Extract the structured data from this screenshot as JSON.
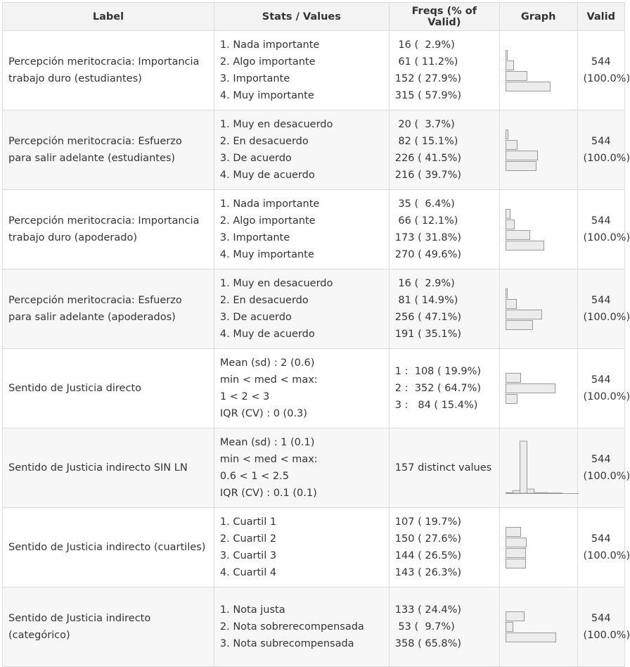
{
  "headers": {
    "label": "Label",
    "stats": "Stats / Values",
    "freqs": "Freqs (% of Valid)",
    "graph": "Graph",
    "valid": "Valid"
  },
  "rows": [
    {
      "label": "Percepción meritocracia: Importancia trabajo duro (estudiantes)",
      "stats": [
        "1. Nada importante",
        "2. Algo importante",
        "3. Importante",
        "4. Muy importante"
      ],
      "freqs": [
        " 16 (  2.9%)",
        " 61 ( 11.2%)",
        "152 ( 27.9%)",
        "315 ( 57.9%)"
      ],
      "pcts": [
        2.9,
        11.2,
        27.9,
        57.9
      ],
      "valid_n": "544",
      "valid_pct": "(100.0%)"
    },
    {
      "label": "Percepción meritocracia: Esfuerzo para salir adelante (estudiantes)",
      "stats": [
        "1. Muy en desacuerdo",
        "2. En desacuerdo",
        "3. De acuerdo",
        "4. Muy de acuerdo"
      ],
      "freqs": [
        " 20 (  3.7%)",
        " 82 ( 15.1%)",
        "226 ( 41.5%)",
        "216 ( 39.7%)"
      ],
      "pcts": [
        3.7,
        15.1,
        41.5,
        39.7
      ],
      "valid_n": "544",
      "valid_pct": "(100.0%)"
    },
    {
      "label": "Percepción meritocracia: Importancia trabajo duro (apoderado)",
      "stats": [
        "1. Nada importante",
        "2. Algo importante",
        "3. Importante",
        "4. Muy importante"
      ],
      "freqs": [
        " 35 (  6.4%)",
        " 66 ( 12.1%)",
        "173 ( 31.8%)",
        "270 ( 49.6%)"
      ],
      "pcts": [
        6.4,
        12.1,
        31.8,
        49.6
      ],
      "valid_n": "544",
      "valid_pct": "(100.0%)"
    },
    {
      "label": "Percepción meritocracia: Esfuerzo para salir adelante (apoderados)",
      "stats": [
        "1. Muy en desacuerdo",
        "2. En desacuerdo",
        "3. De acuerdo",
        "4. Muy de acuerdo"
      ],
      "freqs": [
        " 16 (  2.9%)",
        " 81 ( 14.9%)",
        "256 ( 47.1%)",
        "191 ( 35.1%)"
      ],
      "pcts": [
        2.9,
        14.9,
        47.1,
        35.1
      ],
      "valid_n": "544",
      "valid_pct": "(100.0%)"
    },
    {
      "label": "Sentido de Justicia directo",
      "stats": [
        "Mean (sd) : 2 (0.6)",
        "min < med < max:",
        "1 < 2 < 3",
        "IQR (CV) : 0 (0.3)"
      ],
      "freqs": [
        "1 :  108 ( 19.9%)",
        "2 :  352 ( 64.7%)",
        "3 :   84 ( 15.4%)"
      ],
      "pcts": [
        19.9,
        64.7,
        15.4
      ],
      "valid_n": "544",
      "valid_pct": "(100.0%)"
    },
    {
      "label": "Sentido de Justicia indirecto SIN LN",
      "stats": [
        "Mean (sd) : 1 (0.1)",
        "min < med < max:",
        "0.6 < 1 < 2.5",
        "IQR (CV) : 0.1 (0.1)"
      ],
      "freqs": [
        "157 distinct values"
      ],
      "histogram": [
        1,
        5,
        100,
        8,
        1,
        1,
        0.5,
        0.5
      ],
      "valid_n": "544",
      "valid_pct": "(100.0%)"
    },
    {
      "label": "Sentido de Justicia indirecto (cuartiles)",
      "stats": [
        "1. Cuartil 1",
        "2. Cuartil 2",
        "3. Cuartil 3",
        "4. Cuartil 4"
      ],
      "freqs": [
        "107 ( 19.7%)",
        "150 ( 27.6%)",
        "144 ( 26.5%)",
        "143 ( 26.3%)"
      ],
      "pcts": [
        19.7,
        27.6,
        26.5,
        26.3
      ],
      "valid_n": "544",
      "valid_pct": "(100.0%)"
    },
    {
      "label": "Sentido de Justicia indirecto (categórico)",
      "stats": [
        "1. Nota justa",
        "2. Nota sobrerecompensada",
        "3. Nota subrecompensada"
      ],
      "freqs": [
        "133 ( 24.4%)",
        " 53 (  9.7%)",
        "358 ( 65.8%)"
      ],
      "pcts": [
        24.4,
        9.7,
        65.8
      ],
      "valid_n": "544",
      "valid_pct": "(100.0%)"
    }
  ]
}
